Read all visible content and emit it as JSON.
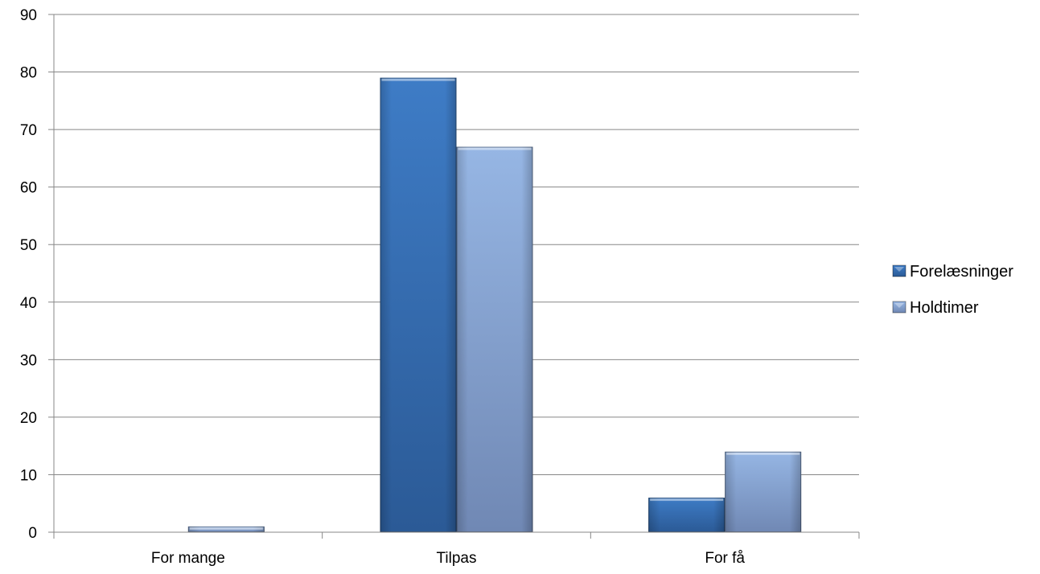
{
  "chart_data": {
    "type": "bar",
    "categories": [
      "For mange",
      "Tilpas",
      "For få"
    ],
    "series": [
      {
        "name": "Forelæsninger",
        "values": [
          0,
          79,
          6
        ],
        "color": "#3a6fb4"
      },
      {
        "name": "Holdtimer",
        "values": [
          1,
          67,
          14
        ],
        "color": "#8faedc"
      }
    ],
    "title": "",
    "xlabel": "",
    "ylabel": "",
    "ylim": [
      0,
      90
    ],
    "yticks": [
      0,
      10,
      20,
      30,
      40,
      50,
      60,
      70,
      80,
      90
    ],
    "grid": true,
    "legend": "right"
  }
}
